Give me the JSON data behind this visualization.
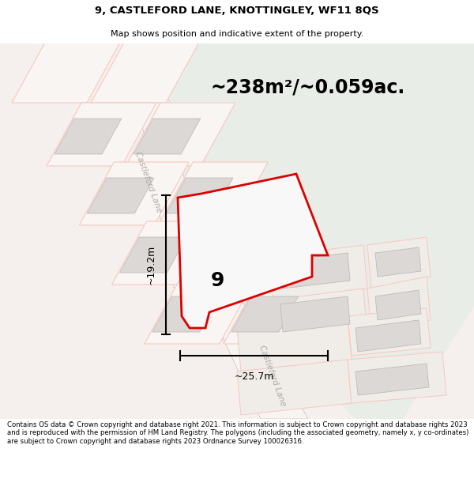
{
  "title": "9, CASTLEFORD LANE, KNOTTINGLEY, WF11 8QS",
  "subtitle": "Map shows position and indicative extent of the property.",
  "area_text": "~238m²/~0.059ac.",
  "width_label": "~25.7m",
  "height_label": "~19.2m",
  "property_number": "9",
  "footer": "Contains OS data © Crown copyright and database right 2021. This information is subject to Crown copyright and database rights 2023 and is reproduced with the permission of HM Land Registry. The polygons (including the associated geometry, namely x, y co-ordinates) are subject to Crown copyright and database rights 2023 Ordnance Survey 100026316.",
  "bg_color": "#f5f0ed",
  "green_color": "#e8ede8",
  "road_color": "#f7f4f1",
  "road_edge_color": "#c8c0b8",
  "building_fill": "#dbd8d5",
  "building_edge": "#b8b5b2",
  "cadastral_color": "#f7c8c0",
  "property_fill": "#ffffff",
  "property_edge": "#dd0000",
  "road_label_color": "#b0aaaa",
  "title_color": "#000000",
  "footer_color": "#000000"
}
